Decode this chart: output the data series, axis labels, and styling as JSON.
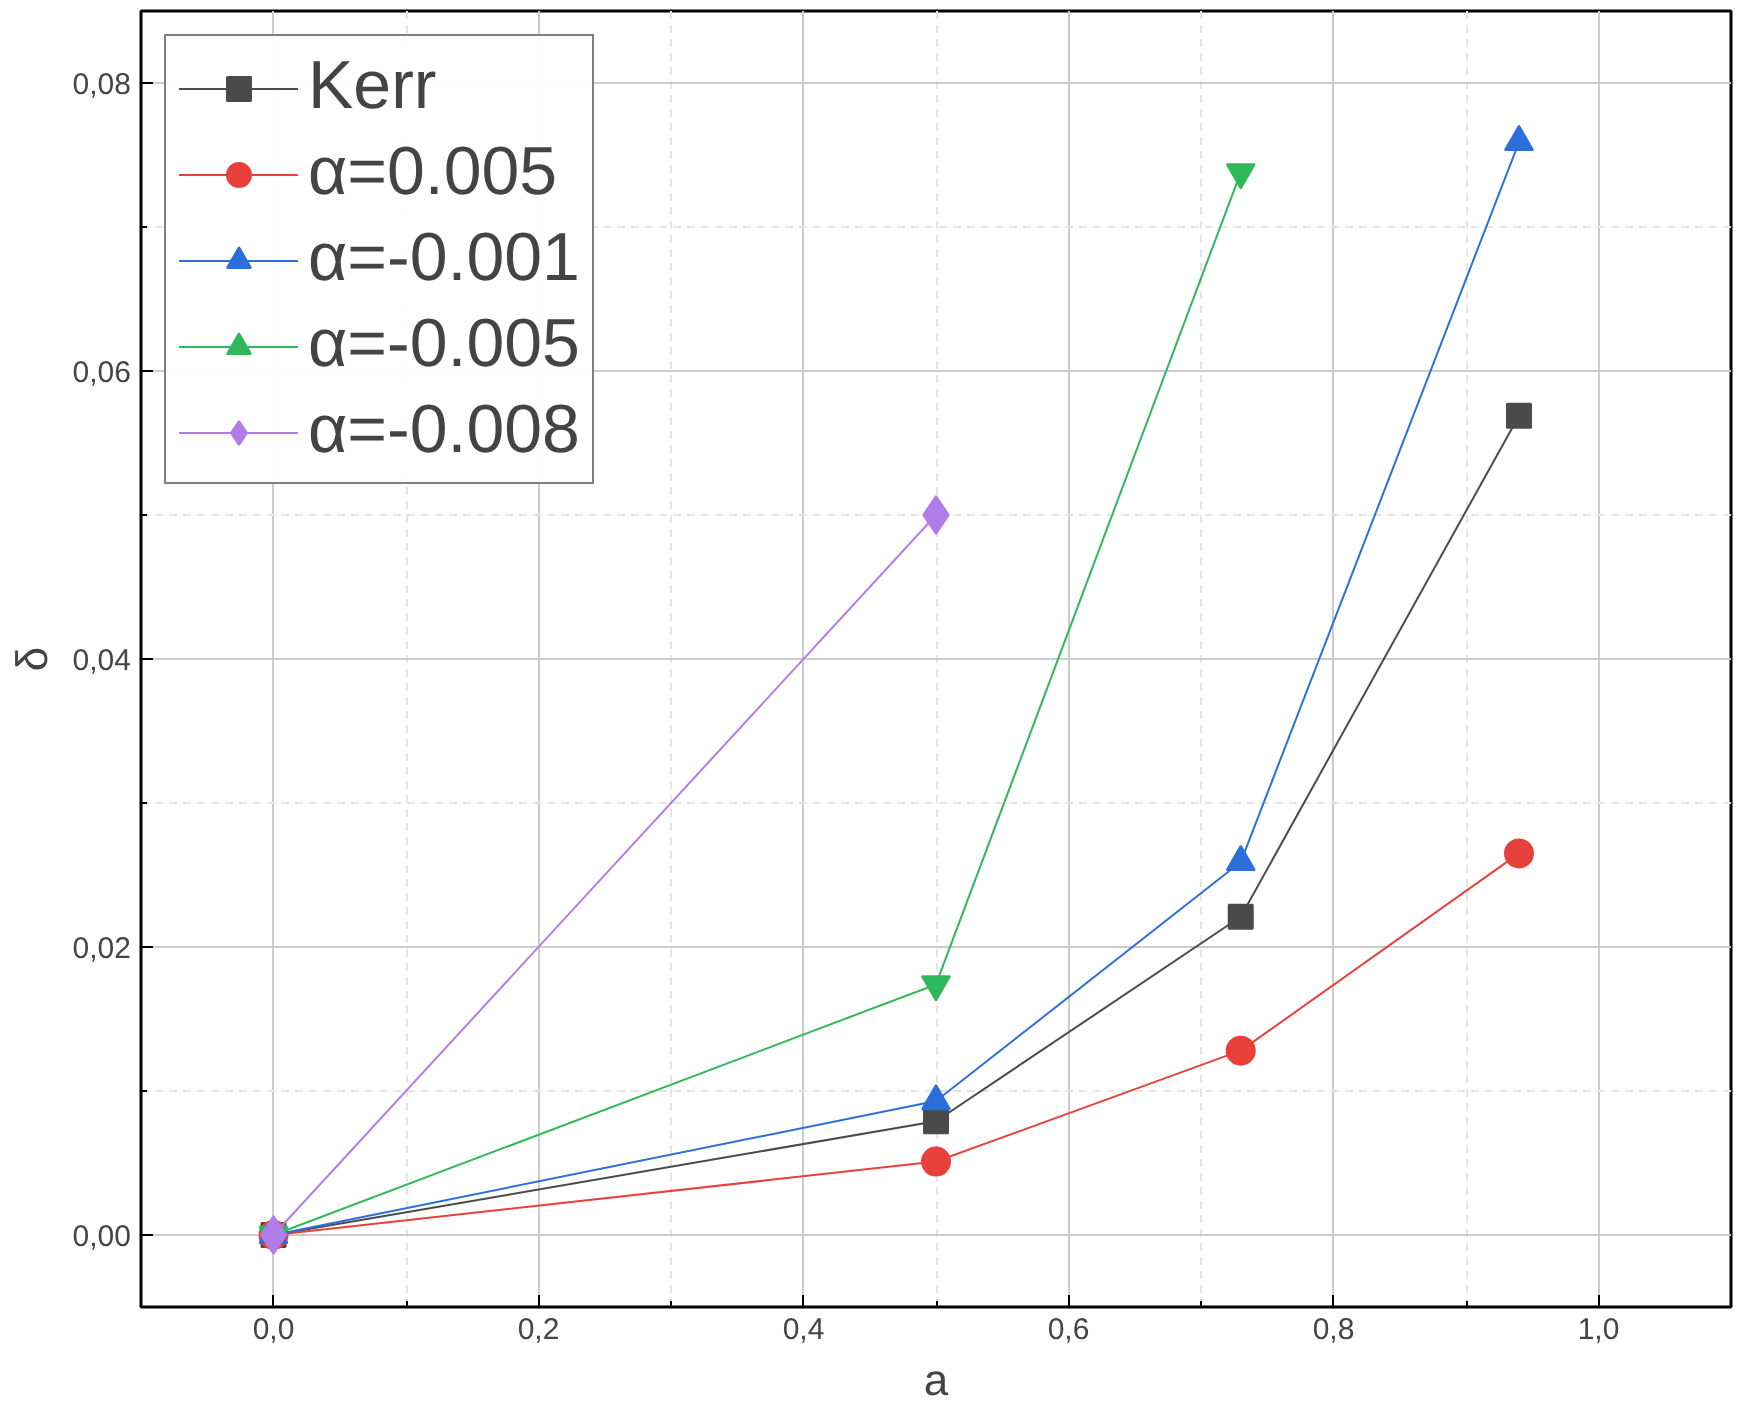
{
  "chart_data": {
    "type": "line",
    "xlabel": "a",
    "ylabel": "δ",
    "xlim": [
      -0.1,
      1.1
    ],
    "ylim": [
      -0.005,
      0.085
    ],
    "xticks": [
      {
        "value": 0,
        "label": "0,0"
      },
      {
        "value": 0.2,
        "label": "0,2"
      },
      {
        "value": 0.4,
        "label": "0,4"
      },
      {
        "value": 0.6,
        "label": "0,6"
      },
      {
        "value": 0.8,
        "label": "0,8"
      },
      {
        "value": 1.0,
        "label": "1,0"
      }
    ],
    "yticks": [
      {
        "value": 0,
        "label": "0,00"
      },
      {
        "value": 0.02,
        "label": "0,02"
      },
      {
        "value": 0.04,
        "label": "0,04"
      },
      {
        "value": 0.06,
        "label": "0,06"
      },
      {
        "value": 0.08,
        "label": "0,08"
      }
    ],
    "grid": true,
    "legend": "top left",
    "line_style": "solid",
    "series": [
      {
        "name": "Kerr",
        "color": "#4a4a4a",
        "marker": "square",
        "x": [
          0,
          0.5,
          0.73,
          0.94
        ],
        "values": [
          0,
          0.0079,
          0.0221,
          0.0569
        ]
      },
      {
        "name": "α=0.005",
        "color": "#e8403a",
        "marker": "circle",
        "x": [
          0,
          0.5,
          0.73,
          0.94
        ],
        "values": [
          0,
          0.0051,
          0.0128,
          0.0265
        ]
      },
      {
        "name": "α=-0.001",
        "color": "#2a6fdb",
        "marker": "triangle",
        "x": [
          0,
          0.5,
          0.73,
          0.94
        ],
        "values": [
          0,
          0.0093,
          0.0259,
          0.0759
        ]
      },
      {
        "name": "α=-0.005",
        "color": "#2fb85a",
        "marker": "triangle",
        "x": [
          0,
          0.5,
          0.73
        ],
        "values": [
          0,
          0.0174,
          0.0738
        ]
      },
      {
        "name": "α=-0.008",
        "color": "#b27ce8",
        "marker": "diamond",
        "x": [
          0,
          0.5
        ],
        "values": [
          0,
          0.05
        ]
      }
    ]
  }
}
